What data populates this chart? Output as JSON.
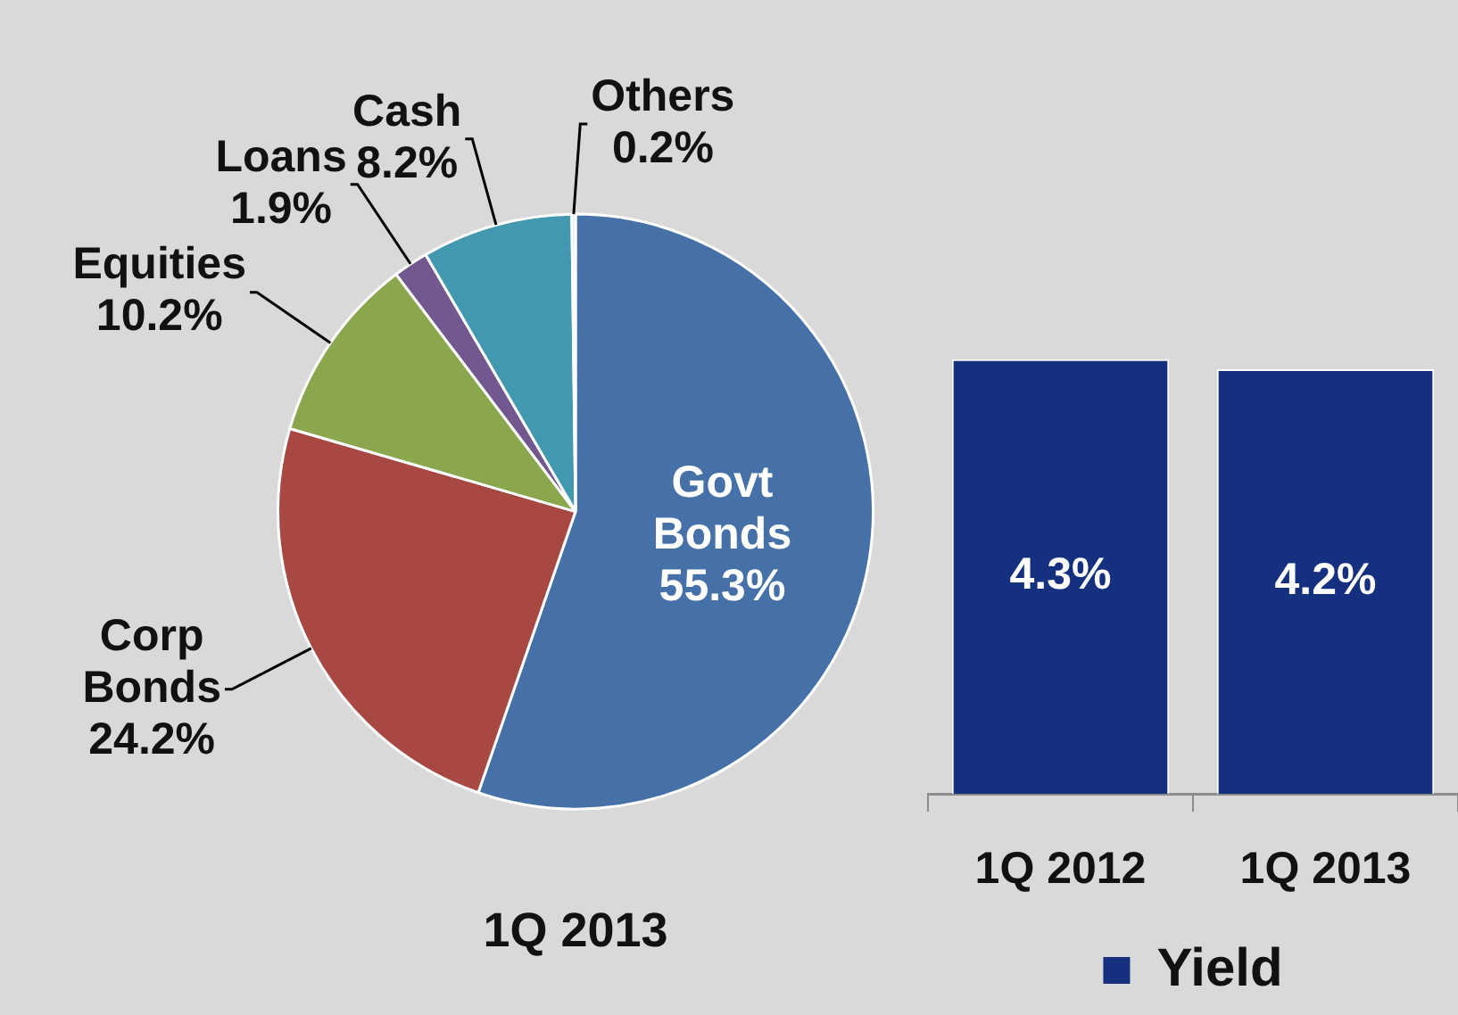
{
  "chart_data": [
    {
      "type": "pie",
      "title": "1Q 2013",
      "categories": [
        "Govt Bonds",
        "Corp Bonds",
        "Equities",
        "Loans",
        "Cash",
        "Others"
      ],
      "values": [
        55.3,
        24.2,
        10.2,
        1.9,
        8.2,
        0.2
      ],
      "colors": [
        "#4571a8",
        "#a84843",
        "#8aa74e",
        "#71588f",
        "#4298af",
        "#dbe5f1"
      ],
      "value_labels": [
        "55.3%",
        "24.2%",
        "10.2%",
        "1.9%",
        "8.2%",
        "0.2%"
      ]
    },
    {
      "type": "bar",
      "categories": [
        "1Q 2012",
        "1Q 2013"
      ],
      "series": [
        {
          "name": "Yield",
          "color": "#14307f",
          "values": [
            4.3,
            4.2
          ],
          "value_labels": [
            "4.3%",
            "4.2%"
          ]
        }
      ],
      "legend": "bottom"
    }
  ]
}
